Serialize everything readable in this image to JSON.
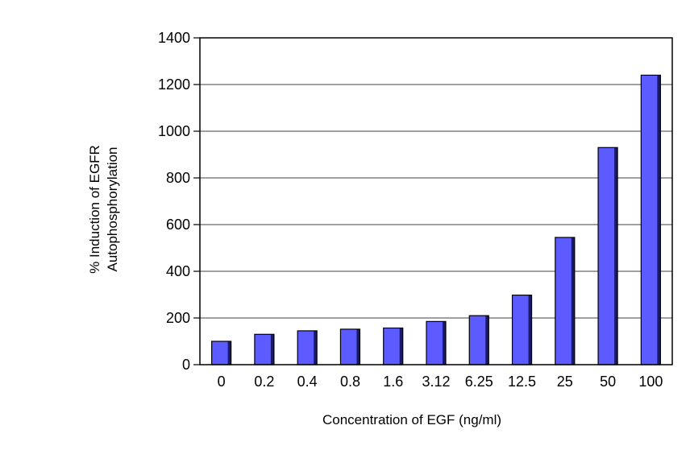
{
  "chart_data": {
    "type": "bar",
    "title": "",
    "xlabel": "Concentration of EGF (ng/ml)",
    "ylabel_lines": [
      "% Induction of EGFR",
      "Autophosphorylation"
    ],
    "categories": [
      "0",
      "0.2",
      "0.4",
      "0.8",
      "1.6",
      "3.12",
      "6.25",
      "12.5",
      "25",
      "50",
      "100"
    ],
    "values": [
      100,
      130,
      145,
      152,
      157,
      185,
      210,
      298,
      545,
      930,
      1240
    ],
    "ylim": [
      0,
      1400
    ],
    "yticks": [
      0,
      200,
      400,
      600,
      800,
      1000,
      1200,
      1400
    ],
    "grid": true,
    "colors": {
      "bar_fill": "#5b5bff",
      "bar_shade": "#1a1a66",
      "axis": "#000000",
      "grid": "#000000"
    }
  }
}
